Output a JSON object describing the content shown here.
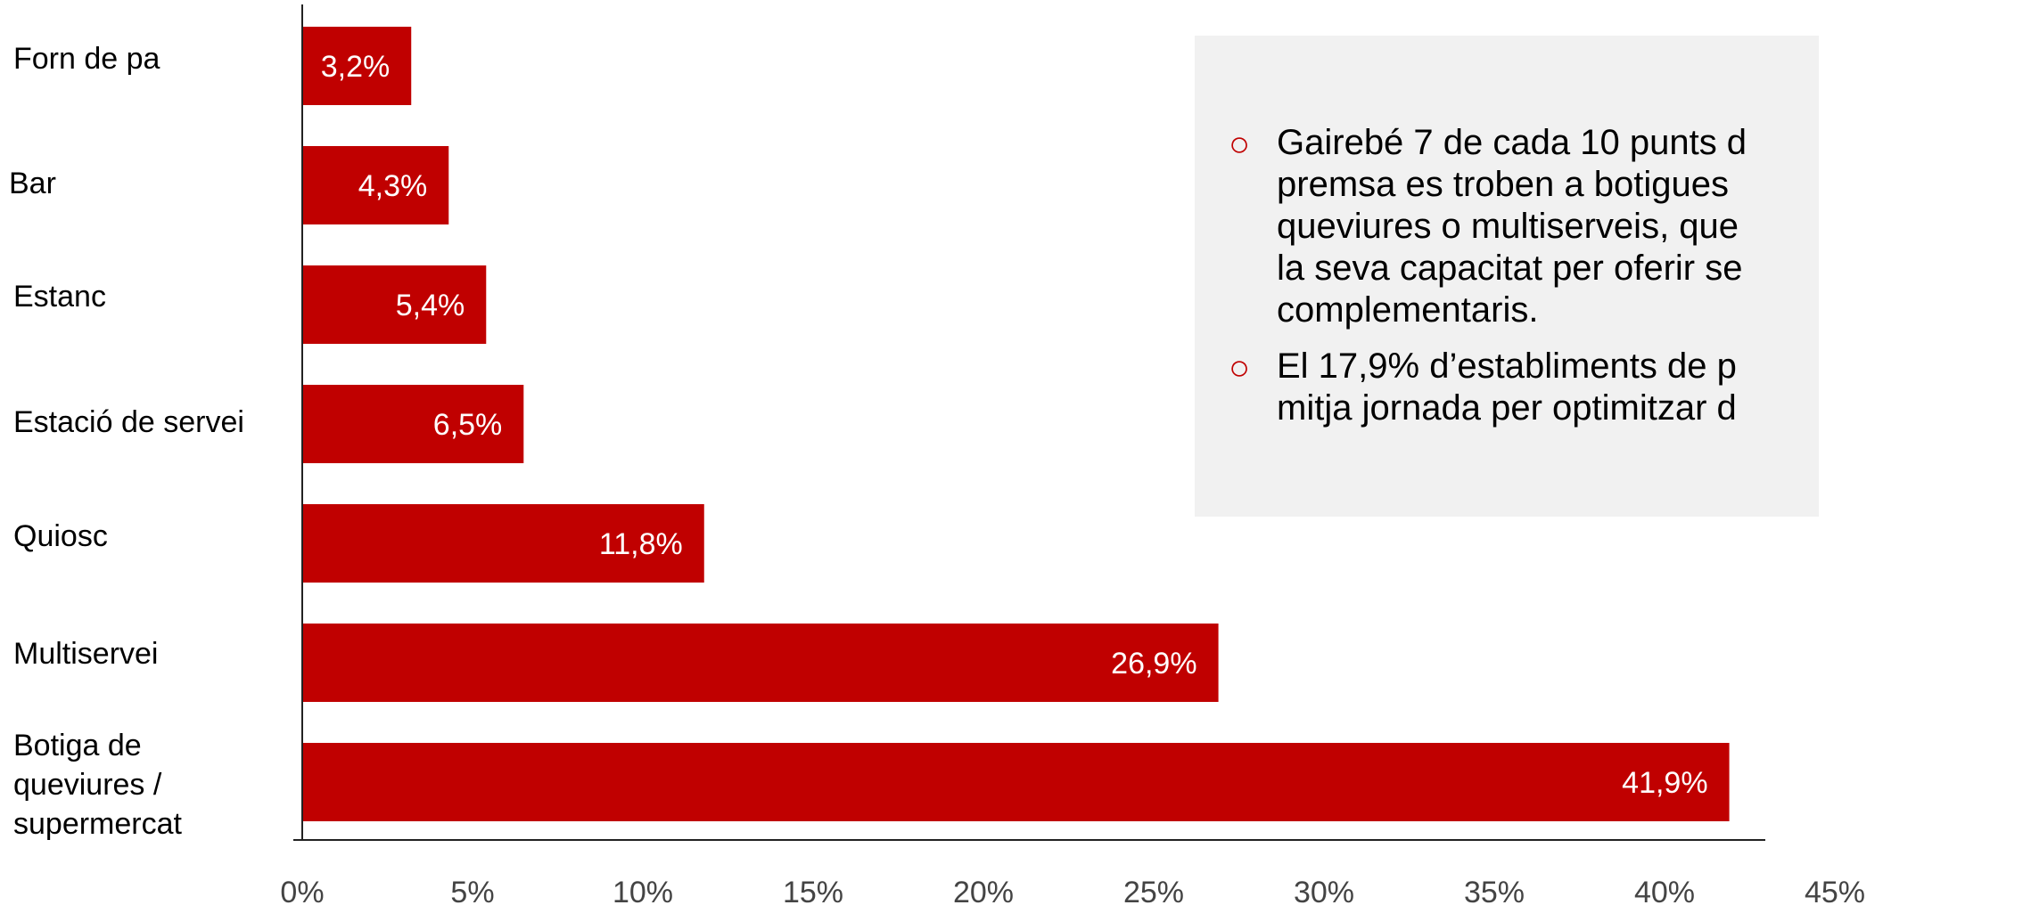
{
  "chart_data": {
    "type": "bar",
    "orientation": "horizontal",
    "categories": [
      "Forn de pa",
      "Bar",
      "Estanc",
      "Estació de servei",
      "Quiosc",
      "Multiservei",
      "Botiga de\nqueviures /\nsupermercat"
    ],
    "values": [
      3.2,
      4.3,
      5.4,
      6.5,
      11.8,
      26.9,
      41.9
    ],
    "data_labels": [
      "3,2%",
      "4,3%",
      "5,4%",
      "6,5%",
      "11,8%",
      "26,9%",
      "41,9%"
    ],
    "x_ticks": [
      "0%",
      "5%",
      "10%",
      "15%",
      "20%",
      "25%",
      "30%",
      "35%",
      "40%",
      "45%"
    ],
    "xlim": [
      0,
      45
    ],
    "bar_color": "#c00000",
    "label_color": "#ffffff",
    "axis_color": "#222222",
    "grid": false,
    "title": "",
    "xlabel": "",
    "ylabel": ""
  },
  "notes": {
    "bullet": "○",
    "items": [
      "Gairebé 7 de cada 10 punts d\npremsa es troben a botigues\nqueviures o multiserveis, que\nla seva capacitat per oferir se\ncomplementaris.",
      "El 17,9% d’establiments de p\nmitja jornada per optimitzar d"
    ],
    "bullet_color": "#c00000",
    "background": "#f1f1f1"
  }
}
